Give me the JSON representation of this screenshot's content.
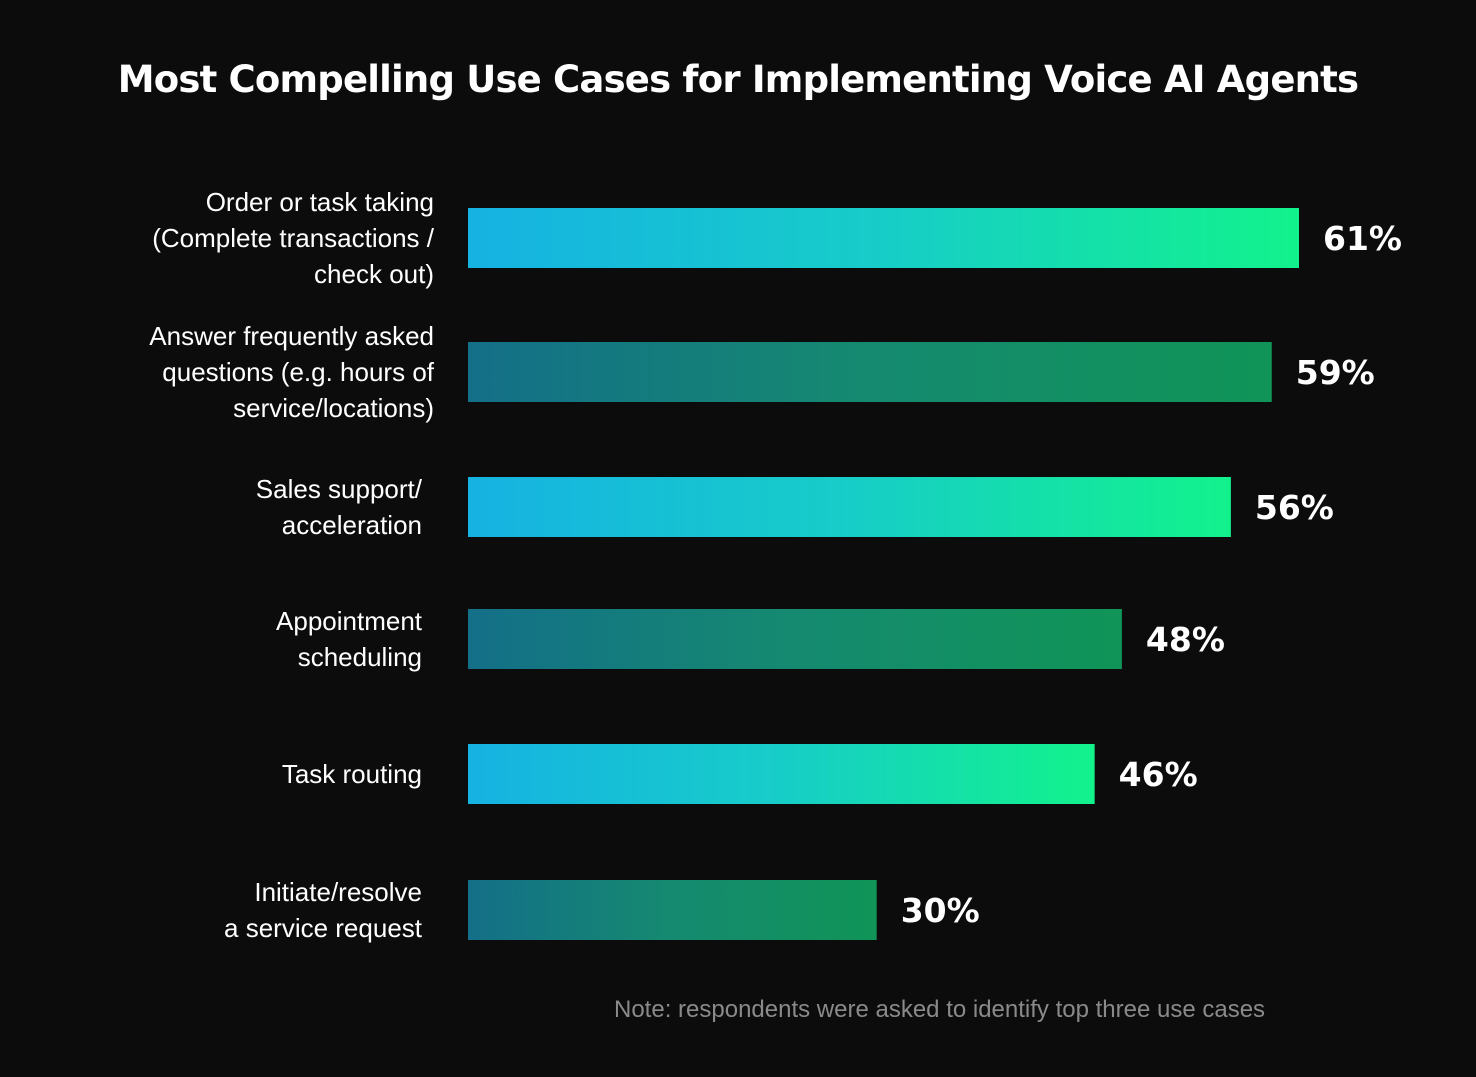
{
  "chart_data": {
    "type": "bar",
    "orientation": "horizontal",
    "title": "Most Compelling Use Cases for Implementing Voice AI Agents",
    "categories": [
      [
        "Order or task taking",
        "(Complete transactions /",
        "check out)"
      ],
      [
        "Answer frequently asked",
        "questions (e.g. hours of",
        "service/locations)"
      ],
      [
        "Sales support/",
        "acceleration"
      ],
      [
        "Appointment",
        "scheduling"
      ],
      [
        "Task routing"
      ],
      [
        "Initiate/resolve",
        "a service request"
      ]
    ],
    "values": [
      61,
      59,
      56,
      48,
      46,
      30
    ],
    "value_labels": [
      "61%",
      "59%",
      "56%",
      "48%",
      "46%",
      "30%"
    ],
    "unit": "%",
    "xlim": [
      0,
      61
    ],
    "grid": false,
    "legend": "none",
    "note": "Note: respondents were asked to identify top three use cases"
  },
  "colors": {
    "background": "#0c0c0c",
    "bright_gradient": [
      "#16b2e2",
      "#17cdc8",
      "#12f28c"
    ],
    "dark_gradient": [
      "#146f88",
      "#158a70",
      "#109457"
    ],
    "text": "#ffffff",
    "note_text": "#8a8a8a"
  }
}
